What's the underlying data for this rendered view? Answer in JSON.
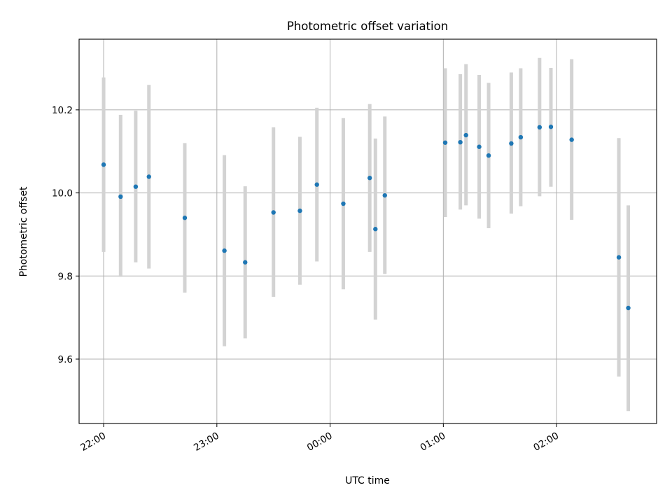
{
  "chart_data": {
    "type": "scatter",
    "title": "Photometric offset variation",
    "xlabel": "UTC time",
    "ylabel": "Photometric offset",
    "x_axis_type": "time",
    "x_range": [
      "21:47",
      "02:53"
    ],
    "x_ticks": [
      "22:00",
      "23:00",
      "00:00",
      "01:00",
      "02:00"
    ],
    "x_tick_rotation_deg": 30,
    "ylim": [
      9.445,
      10.37
    ],
    "y_ticks": [
      9.6,
      9.8,
      10.0,
      10.2
    ],
    "grid": true,
    "marker_color": "#1f77b4",
    "errorbar_color": "#d3d3d3",
    "points": [
      {
        "x": "22:00",
        "y": 10.068,
        "yerr_low": 9.858,
        "yerr_high": 10.278
      },
      {
        "x": "22:09",
        "y": 9.991,
        "yerr_low": 9.798,
        "yerr_high": 10.188
      },
      {
        "x": "22:17",
        "y": 10.015,
        "yerr_low": 9.833,
        "yerr_high": 10.198
      },
      {
        "x": "22:24",
        "y": 10.039,
        "yerr_low": 9.818,
        "yerr_high": 10.26
      },
      {
        "x": "22:43",
        "y": 9.94,
        "yerr_low": 9.76,
        "yerr_high": 10.12
      },
      {
        "x": "23:04",
        "y": 9.861,
        "yerr_low": 9.631,
        "yerr_high": 10.091
      },
      {
        "x": "23:15",
        "y": 9.833,
        "yerr_low": 9.65,
        "yerr_high": 10.016
      },
      {
        "x": "23:30",
        "y": 9.953,
        "yerr_low": 9.75,
        "yerr_high": 10.158
      },
      {
        "x": "23:44",
        "y": 9.957,
        "yerr_low": 9.779,
        "yerr_high": 10.135
      },
      {
        "x": "23:53",
        "y": 10.02,
        "yerr_low": 9.835,
        "yerr_high": 10.205
      },
      {
        "x": "00:07",
        "y": 9.974,
        "yerr_low": 9.768,
        "yerr_high": 10.18
      },
      {
        "x": "00:21",
        "y": 10.036,
        "yerr_low": 9.858,
        "yerr_high": 10.214
      },
      {
        "x": "00:24",
        "y": 9.913,
        "yerr_low": 9.695,
        "yerr_high": 10.131
      },
      {
        "x": "00:29",
        "y": 9.994,
        "yerr_low": 9.805,
        "yerr_high": 10.184
      },
      {
        "x": "01:01",
        "y": 10.121,
        "yerr_low": 9.942,
        "yerr_high": 10.3
      },
      {
        "x": "01:09",
        "y": 10.122,
        "yerr_low": 9.96,
        "yerr_high": 10.286
      },
      {
        "x": "01:12",
        "y": 10.139,
        "yerr_low": 9.97,
        "yerr_high": 10.31
      },
      {
        "x": "01:19",
        "y": 10.111,
        "yerr_low": 9.938,
        "yerr_high": 10.284
      },
      {
        "x": "01:24",
        "y": 10.09,
        "yerr_low": 9.915,
        "yerr_high": 10.265
      },
      {
        "x": "01:36",
        "y": 10.119,
        "yerr_low": 9.95,
        "yerr_high": 10.29
      },
      {
        "x": "01:41",
        "y": 10.134,
        "yerr_low": 9.968,
        "yerr_high": 10.3
      },
      {
        "x": "01:51",
        "y": 10.158,
        "yerr_low": 9.992,
        "yerr_high": 10.325
      },
      {
        "x": "01:57",
        "y": 10.159,
        "yerr_low": 10.015,
        "yerr_high": 10.301
      },
      {
        "x": "02:08",
        "y": 10.128,
        "yerr_low": 9.935,
        "yerr_high": 10.322
      },
      {
        "x": "02:33",
        "y": 9.845,
        "yerr_low": 9.558,
        "yerr_high": 10.132
      },
      {
        "x": "02:38",
        "y": 9.723,
        "yerr_low": 9.475,
        "yerr_high": 9.97
      }
    ]
  }
}
